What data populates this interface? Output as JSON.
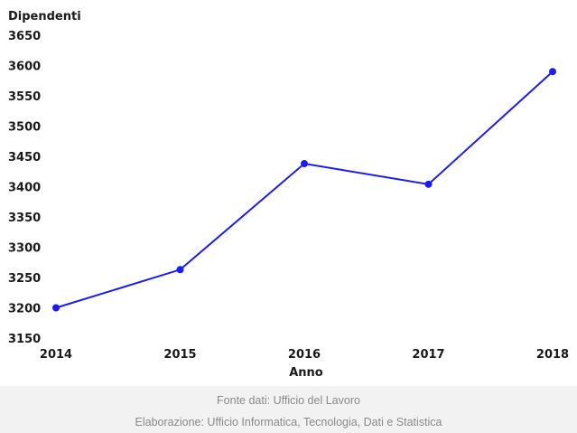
{
  "chart_data": {
    "type": "line",
    "title": "",
    "xlabel": "Anno",
    "ylabel": "Dipendenti",
    "categories": [
      "2014",
      "2015",
      "2016",
      "2017",
      "2018"
    ],
    "series": [
      {
        "values": [
          3200,
          3263,
          3438,
          3404,
          3590
        ]
      }
    ],
    "ylim": [
      3150,
      3650
    ],
    "yticks": [
      3150,
      3200,
      3250,
      3300,
      3350,
      3400,
      3450,
      3500,
      3550,
      3600,
      3650
    ],
    "grid": false,
    "line_color": "#1a1aff"
  },
  "footer": {
    "source": "Fonte dati: Ufficio del Lavoro",
    "elaboration": "Elaborazione: Ufficio Informatica, Tecnologia, Dati e Statistica"
  }
}
